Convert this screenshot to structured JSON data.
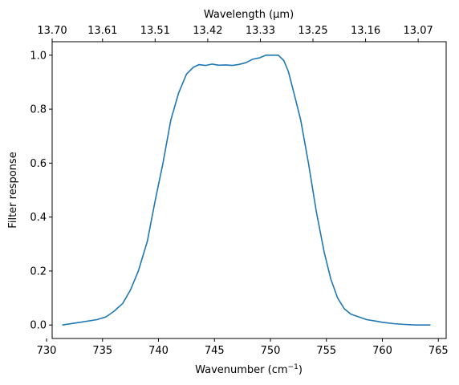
{
  "chart_data": {
    "type": "line",
    "title": "",
    "xlabel": "Wavenumber (cm",
    "xlabel_sup": "−1",
    "xlabel_suffix": ")",
    "ylabel": "Filter response",
    "top_axis_label": "Wavelength (μm)",
    "xlim": [
      730.5,
      765.7
    ],
    "ylim": [
      -0.05,
      1.05
    ],
    "x_ticks": [
      730,
      735,
      740,
      745,
      750,
      755,
      760,
      765
    ],
    "x_tick_labels": [
      "730",
      "735",
      "740",
      "745",
      "750",
      "755",
      "760",
      "765"
    ],
    "y_ticks": [
      0.0,
      0.2,
      0.4,
      0.6,
      0.8,
      1.0
    ],
    "y_tick_labels": [
      "0.0",
      "0.2",
      "0.4",
      "0.6",
      "0.8",
      "1.0"
    ],
    "top_ticks": [
      {
        "x": 730.2,
        "label": "13.70"
      },
      {
        "x": 735.0,
        "label": "13.61"
      },
      {
        "x": 739.7,
        "label": "13.51"
      },
      {
        "x": 744.4,
        "label": "13.42"
      },
      {
        "x": 749.1,
        "label": "13.33"
      },
      {
        "x": 753.8,
        "label": "13.25"
      },
      {
        "x": 758.5,
        "label": "13.16"
      },
      {
        "x": 763.2,
        "label": "13.07"
      }
    ],
    "grid": false,
    "legend": "none",
    "series": [
      {
        "color": "#1f77b4",
        "x": [
          731.4,
          733.0,
          734.5,
          735.3,
          736.0,
          736.8,
          737.5,
          738.2,
          739.0,
          739.7,
          740.4,
          741.1,
          741.8,
          742.5,
          743.1,
          743.6,
          744.2,
          744.8,
          745.4,
          746.0,
          746.6,
          747.2,
          747.8,
          748.4,
          749.0,
          749.6,
          750.2,
          750.7,
          751.2,
          751.6,
          752.1,
          752.7,
          753.4,
          754.1,
          754.8,
          755.4,
          756.0,
          756.6,
          757.2,
          757.9,
          758.6,
          759.3,
          760.0,
          761.0,
          762.0,
          763.0,
          764.3
        ],
        "y": [
          0.0,
          0.01,
          0.02,
          0.03,
          0.05,
          0.08,
          0.13,
          0.2,
          0.31,
          0.46,
          0.6,
          0.76,
          0.86,
          0.93,
          0.955,
          0.965,
          0.962,
          0.967,
          0.963,
          0.964,
          0.962,
          0.966,
          0.972,
          0.985,
          0.99,
          1.0,
          1.0,
          1.0,
          0.98,
          0.94,
          0.86,
          0.76,
          0.6,
          0.42,
          0.27,
          0.17,
          0.1,
          0.06,
          0.04,
          0.03,
          0.02,
          0.015,
          0.01,
          0.005,
          0.002,
          0.0,
          0.0
        ]
      }
    ]
  }
}
